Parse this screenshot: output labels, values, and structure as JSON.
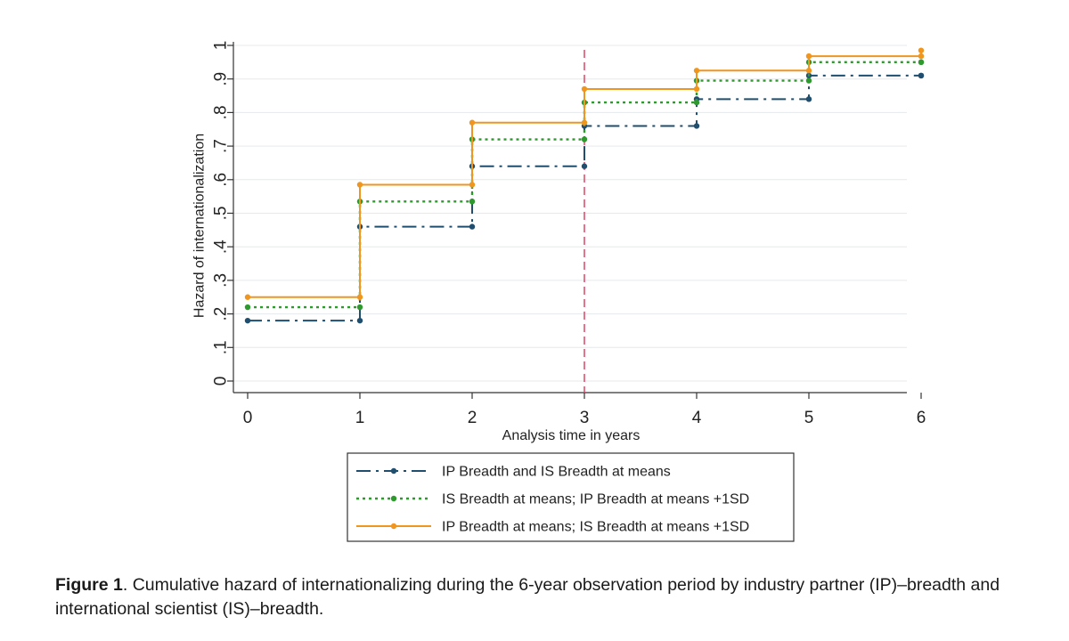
{
  "chart_data": {
    "type": "line",
    "style": "step",
    "x": [
      0,
      1,
      2,
      3,
      4,
      5,
      6
    ],
    "xlim": [
      0,
      6
    ],
    "ylim": [
      0,
      1
    ],
    "x_ticks": [
      "0",
      "1",
      "2",
      "3",
      "4",
      "5",
      "6"
    ],
    "y_ticks": [
      {
        "value": 0,
        "label": "0"
      },
      {
        "value": 0.1,
        "label": ".1"
      },
      {
        "value": 0.2,
        "label": ".2"
      },
      {
        "value": 0.3,
        "label": ".3"
      },
      {
        "value": 0.4,
        "label": ".4"
      },
      {
        "value": 0.5,
        "label": ".5"
      },
      {
        "value": 0.6,
        "label": ".6"
      },
      {
        "value": 0.7,
        "label": ".7"
      },
      {
        "value": 0.8,
        "label": ".8"
      },
      {
        "value": 0.9,
        "label": ".9"
      },
      {
        "value": 1,
        "label": "1"
      }
    ],
    "xlabel": "Analysis time in years",
    "ylabel": "Hazard of internationalization",
    "grid": true,
    "reference_line": {
      "x": 3,
      "color": "#e05070",
      "style": "dashed"
    },
    "legend_position": "bottom",
    "series": [
      {
        "name": "IP Breadth and IS Breadth at means",
        "color": "#1f4e6e",
        "style": "dash-dot",
        "values": [
          0.18,
          0.46,
          0.64,
          0.76,
          0.84,
          0.91,
          0.91
        ]
      },
      {
        "name": "IS Breadth at means; IP Breadth at means +1SD",
        "color": "#2e9a2e",
        "style": "dotted",
        "values": [
          0.22,
          0.535,
          0.72,
          0.83,
          0.895,
          0.95,
          0.95
        ]
      },
      {
        "name": "IP Breadth at means; IS Breadth at means +1SD",
        "color": "#f0961e",
        "style": "solid",
        "values": [
          0.25,
          0.585,
          0.77,
          0.87,
          0.925,
          0.968,
          0.985
        ]
      }
    ]
  },
  "caption": {
    "label": "Figure 1",
    "text": ". Cumulative hazard of internationalizing during the 6-year observation period by industry partner (IP)–breadth and international scientist (IS)–breadth."
  }
}
